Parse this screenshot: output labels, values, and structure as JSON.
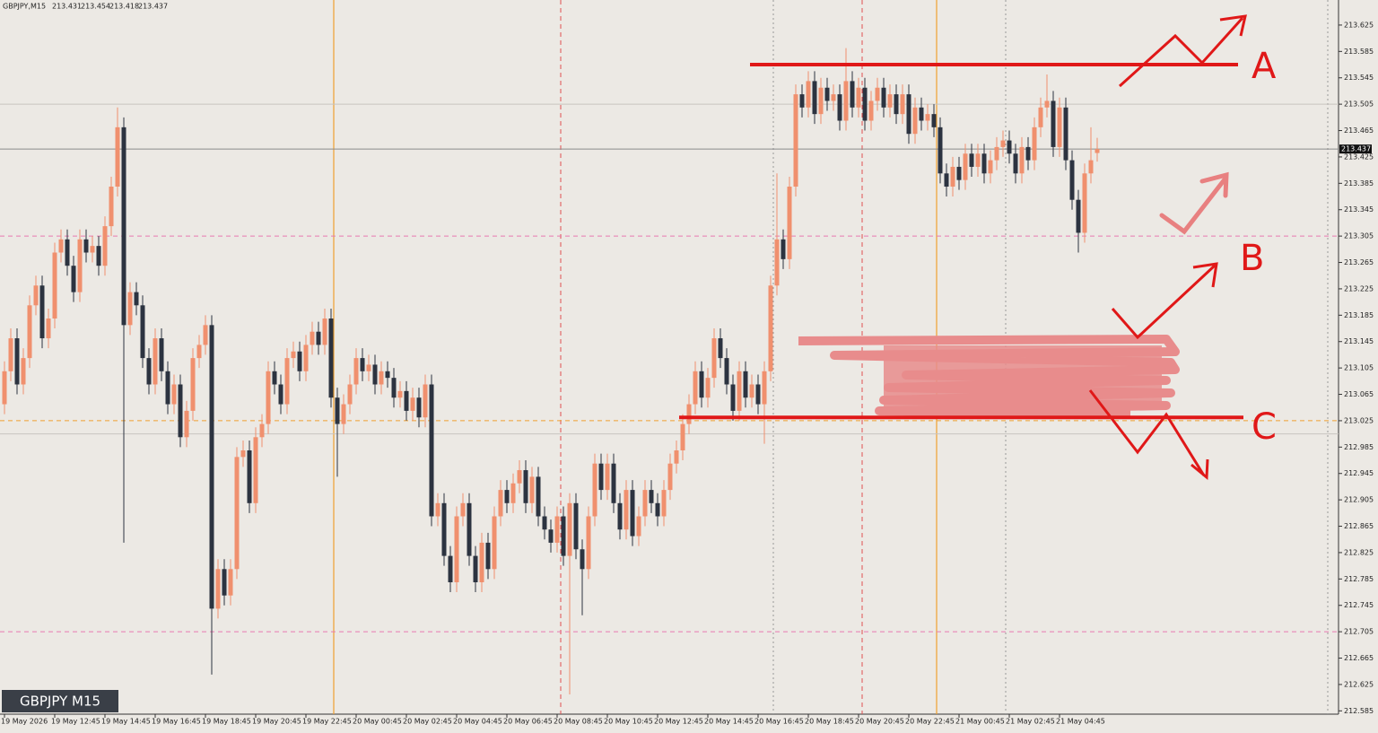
{
  "chart_data": {
    "type": "candlestick",
    "title": "GBPJPY,M15",
    "ohlc_header": [
      213.431,
      213.454,
      213.418,
      213.437
    ],
    "symbol_label": "GBPJPY M15",
    "current_price": 213.437,
    "up_color": "#f0906e",
    "down_color": "#2c3340",
    "ylim": [
      212.58,
      213.663
    ],
    "yticks": [
      213.625,
      213.585,
      213.545,
      213.505,
      213.465,
      213.425,
      213.385,
      213.345,
      213.305,
      213.265,
      213.225,
      213.185,
      213.145,
      213.105,
      213.065,
      213.025,
      212.985,
      212.945,
      212.905,
      212.865,
      212.825,
      212.785,
      212.745,
      212.705,
      212.665,
      212.625,
      212.585
    ],
    "categories": [
      "19 May 2026",
      null,
      null,
      null,
      null,
      null,
      null,
      null,
      "19 May 12:45",
      null,
      null,
      null,
      null,
      null,
      null,
      null,
      "19 May 14:45",
      null,
      null,
      null,
      null,
      null,
      null,
      null,
      "19 May 16:45",
      null,
      null,
      null,
      null,
      null,
      null,
      null,
      "19 May 18:45",
      null,
      null,
      null,
      null,
      null,
      null,
      null,
      "19 May 20:45",
      null,
      null,
      null,
      null,
      null,
      null,
      null,
      "19 May 22:45",
      null,
      null,
      null,
      null,
      null,
      null,
      null,
      "20 May 00:45",
      null,
      null,
      null,
      null,
      null,
      null,
      null,
      "20 May 02:45",
      null,
      null,
      null,
      null,
      null,
      null,
      null,
      "20 May 04:45",
      null,
      null,
      null,
      null,
      null,
      null,
      null,
      "20 May 06:45",
      null,
      null,
      null,
      null,
      null,
      null,
      null,
      "20 May 08:45",
      null,
      null,
      null,
      null,
      null,
      null,
      null,
      "20 May 10:45",
      null,
      null,
      null,
      null,
      null,
      null,
      null,
      "20 May 12:45",
      null,
      null,
      null,
      null,
      null,
      null,
      null,
      "20 May 14:45",
      null,
      null,
      null,
      null,
      null,
      null,
      null,
      "20 May 16:45",
      null,
      null,
      null,
      null,
      null,
      null,
      null,
      "20 May 18:45",
      null,
      null,
      null,
      null,
      null,
      null,
      null,
      "20 May 20:45",
      null,
      null,
      null,
      null,
      null,
      null,
      null,
      "20 May 22:45",
      null,
      null,
      null,
      null,
      null,
      null,
      null,
      "21 May 00:45",
      null,
      null,
      null,
      null,
      null,
      null,
      null,
      "21 May 02:45",
      null,
      null,
      null,
      null,
      null,
      null,
      null,
      "21 May 04:45",
      null,
      null,
      null,
      null,
      null,
      null
    ],
    "open": [
      213.05,
      213.1,
      213.15,
      213.08,
      213.12,
      213.2,
      213.23,
      213.15,
      213.18,
      213.28,
      213.3,
      213.26,
      213.22,
      213.3,
      213.28,
      213.29,
      213.26,
      213.32,
      213.38,
      213.47,
      213.17,
      213.22,
      213.2,
      213.12,
      213.08,
      213.15,
      213.1,
      213.05,
      213.08,
      213.0,
      213.04,
      213.12,
      213.14,
      213.17,
      212.74,
      212.8,
      212.76,
      212.8,
      212.97,
      212.98,
      212.9,
      213.0,
      213.02,
      213.1,
      213.08,
      213.05,
      213.12,
      213.13,
      213.1,
      213.14,
      213.16,
      213.14,
      213.18,
      213.06,
      213.02,
      213.05,
      213.08,
      213.12,
      213.1,
      213.11,
      213.08,
      213.1,
      213.09,
      213.06,
      213.07,
      213.04,
      213.06,
      213.03,
      213.08,
      212.88,
      212.9,
      212.82,
      212.78,
      212.88,
      212.9,
      212.82,
      212.78,
      212.84,
      212.8,
      212.88,
      212.92,
      212.9,
      212.93,
      212.95,
      212.9,
      212.94,
      212.88,
      212.86,
      212.84,
      212.88,
      212.82,
      212.9,
      212.83,
      212.8,
      212.88,
      212.96,
      212.92,
      212.96,
      212.9,
      212.86,
      212.92,
      212.85,
      212.88,
      212.92,
      212.9,
      212.88,
      212.92,
      212.96,
      212.98,
      213.02,
      213.05,
      213.1,
      213.06,
      213.09,
      213.15,
      213.12,
      213.08,
      213.04,
      213.1,
      213.06,
      213.08,
      213.05,
      213.1,
      213.23,
      213.3,
      213.27,
      213.38,
      213.52,
      213.5,
      213.54,
      213.49,
      213.53,
      213.51,
      213.52,
      213.48,
      213.54,
      213.5,
      213.53,
      213.48,
      213.51,
      213.53,
      213.5,
      213.52,
      213.49,
      213.52,
      213.46,
      213.5,
      213.48,
      213.49,
      213.47,
      213.4,
      213.38,
      213.41,
      213.39,
      213.43,
      213.41,
      213.43,
      213.4,
      213.42,
      213.44,
      213.45,
      213.43,
      213.4,
      213.44,
      213.42,
      213.47,
      213.5,
      213.51,
      213.44,
      213.5,
      213.42,
      213.36,
      213.31,
      213.4,
      213.431
    ],
    "high": [
      213.115,
      213.165,
      213.165,
      213.135,
      213.215,
      213.245,
      213.245,
      213.195,
      213.295,
      213.315,
      213.315,
      213.275,
      213.315,
      213.315,
      213.305,
      213.305,
      213.335,
      213.395,
      213.5,
      213.485,
      213.235,
      213.235,
      213.215,
      213.135,
      213.165,
      213.165,
      213.115,
      213.095,
      213.095,
      213.055,
      213.135,
      213.155,
      213.185,
      213.185,
      212.815,
      212.815,
      212.815,
      212.985,
      212.995,
      212.995,
      213.015,
      213.035,
      213.115,
      213.115,
      213.095,
      213.135,
      213.145,
      213.145,
      213.155,
      213.175,
      213.175,
      213.195,
      213.195,
      213.075,
      213.065,
      213.095,
      213.135,
      213.135,
      213.125,
      213.125,
      213.115,
      213.115,
      213.105,
      213.085,
      213.085,
      213.075,
      213.075,
      213.095,
      213.095,
      212.915,
      212.915,
      212.835,
      212.895,
      212.915,
      212.915,
      212.835,
      212.855,
      212.855,
      212.895,
      212.935,
      212.935,
      212.945,
      212.965,
      212.965,
      212.955,
      212.955,
      212.895,
      212.875,
      212.895,
      212.895,
      212.915,
      212.915,
      212.845,
      212.895,
      212.975,
      212.975,
      212.975,
      212.975,
      212.915,
      212.935,
      212.935,
      212.895,
      212.935,
      212.935,
      212.915,
      212.935,
      212.975,
      212.995,
      213.035,
      213.065,
      213.115,
      213.115,
      213.105,
      213.165,
      213.165,
      213.135,
      213.095,
      213.115,
      213.115,
      213.095,
      213.095,
      213.115,
      213.245,
      213.4,
      213.315,
      213.395,
      213.535,
      213.535,
      213.555,
      213.555,
      213.545,
      213.545,
      213.535,
      213.535,
      213.59,
      213.555,
      213.545,
      213.545,
      213.525,
      213.545,
      213.545,
      213.535,
      213.535,
      213.535,
      213.535,
      213.515,
      213.515,
      213.505,
      213.505,
      213.485,
      213.415,
      213.425,
      213.425,
      213.445,
      213.445,
      213.445,
      213.445,
      213.435,
      213.455,
      213.465,
      213.465,
      213.445,
      213.455,
      213.455,
      213.485,
      213.515,
      213.55,
      213.525,
      213.515,
      213.515,
      213.435,
      213.375,
      213.415,
      213.47,
      213.454
    ],
    "low": [
      213.035,
      213.085,
      213.065,
      213.065,
      213.105,
      213.185,
      213.135,
      213.135,
      213.165,
      213.265,
      213.245,
      213.205,
      213.205,
      213.265,
      213.265,
      213.245,
      213.245,
      213.305,
      213.365,
      212.84,
      213.155,
      213.185,
      213.105,
      213.065,
      213.065,
      213.085,
      213.035,
      213.035,
      212.985,
      212.985,
      213.025,
      213.105,
      213.125,
      212.64,
      212.725,
      212.745,
      212.745,
      212.785,
      212.955,
      212.885,
      212.885,
      212.985,
      213.005,
      213.065,
      213.035,
      213.035,
      213.105,
      213.085,
      213.085,
      213.125,
      213.125,
      213.125,
      213.045,
      212.94,
      213.005,
      213.035,
      213.065,
      213.085,
      213.085,
      213.065,
      213.065,
      213.075,
      213.045,
      213.045,
      213.025,
      213.025,
      213.015,
      213.015,
      212.865,
      212.865,
      212.805,
      212.765,
      212.765,
      212.865,
      212.805,
      212.765,
      212.765,
      212.785,
      212.785,
      212.865,
      212.885,
      212.885,
      212.915,
      212.885,
      212.885,
      212.865,
      212.845,
      212.825,
      212.825,
      212.805,
      212.61,
      212.815,
      212.73,
      212.785,
      212.865,
      212.905,
      212.905,
      212.885,
      212.845,
      212.845,
      212.835,
      212.835,
      212.865,
      212.885,
      212.865,
      212.865,
      212.905,
      212.945,
      212.965,
      213.005,
      213.035,
      213.045,
      213.045,
      213.075,
      213.105,
      213.065,
      213.025,
      213.025,
      213.045,
      213.045,
      213.035,
      212.99,
      213.085,
      213.215,
      213.255,
      213.255,
      213.365,
      213.485,
      213.485,
      213.475,
      213.475,
      213.495,
      213.495,
      213.465,
      213.465,
      213.485,
      213.485,
      213.465,
      213.465,
      213.495,
      213.485,
      213.485,
      213.475,
      213.475,
      213.445,
      213.445,
      213.465,
      213.465,
      213.455,
      213.385,
      213.365,
      213.365,
      213.375,
      213.375,
      213.395,
      213.395,
      213.385,
      213.385,
      213.405,
      213.425,
      213.415,
      213.385,
      213.385,
      213.405,
      213.405,
      213.455,
      213.485,
      213.425,
      213.425,
      213.405,
      213.345,
      213.28,
      213.295,
      213.385,
      213.418
    ],
    "close": [
      213.1,
      213.15,
      213.08,
      213.12,
      213.2,
      213.23,
      213.15,
      213.18,
      213.28,
      213.3,
      213.26,
      213.22,
      213.3,
      213.28,
      213.29,
      213.26,
      213.32,
      213.38,
      213.47,
      213.17,
      213.22,
      213.2,
      213.12,
      213.08,
      213.15,
      213.1,
      213.05,
      213.08,
      213.0,
      213.04,
      213.12,
      213.14,
      213.17,
      212.74,
      212.8,
      212.76,
      212.8,
      212.97,
      212.98,
      212.9,
      213.0,
      213.02,
      213.1,
      213.08,
      213.05,
      213.12,
      213.13,
      213.1,
      213.14,
      213.16,
      213.14,
      213.18,
      213.06,
      213.02,
      213.05,
      213.08,
      213.12,
      213.1,
      213.11,
      213.08,
      213.1,
      213.09,
      213.06,
      213.07,
      213.04,
      213.06,
      213.03,
      213.08,
      212.88,
      212.9,
      212.82,
      212.78,
      212.88,
      212.9,
      212.82,
      212.78,
      212.84,
      212.8,
      212.88,
      212.92,
      212.9,
      212.93,
      212.95,
      212.9,
      212.94,
      212.88,
      212.86,
      212.84,
      212.88,
      212.82,
      212.9,
      212.83,
      212.8,
      212.88,
      212.96,
      212.92,
      212.96,
      212.9,
      212.86,
      212.92,
      212.85,
      212.88,
      212.92,
      212.9,
      212.88,
      212.92,
      212.96,
      212.98,
      213.02,
      213.05,
      213.1,
      213.06,
      213.09,
      213.15,
      213.12,
      213.08,
      213.04,
      213.1,
      213.06,
      213.08,
      213.05,
      213.1,
      213.23,
      213.3,
      213.27,
      213.38,
      213.52,
      213.5,
      213.54,
      213.49,
      213.53,
      213.51,
      213.52,
      213.48,
      213.54,
      213.5,
      213.53,
      213.48,
      213.51,
      213.53,
      213.5,
      213.52,
      213.49,
      213.52,
      213.46,
      213.5,
      213.48,
      213.49,
      213.47,
      213.4,
      213.38,
      213.41,
      213.39,
      213.43,
      213.41,
      213.43,
      213.4,
      213.42,
      213.44,
      213.45,
      213.43,
      213.4,
      213.44,
      213.42,
      213.47,
      213.5,
      213.51,
      213.44,
      213.5,
      213.42,
      213.36,
      213.31,
      213.4,
      213.42,
      213.437
    ],
    "horizontal_lines": [
      {
        "value": 213.505,
        "color": "#c8c4bf",
        "style": "solid"
      },
      {
        "value": 213.305,
        "color": "#e87ab0",
        "style": "dashed"
      },
      {
        "value": 213.025,
        "color": "#f0a030",
        "style": "dashed"
      },
      {
        "value": 213.005,
        "color": "#c8c4bf",
        "style": "solid"
      },
      {
        "value": 212.705,
        "color": "#e87ab0",
        "style": "dashed"
      }
    ],
    "level_lines": [
      213.565,
      213.03
    ],
    "level_color": "#e01818",
    "annotations": [
      "A",
      "B",
      "C"
    ]
  }
}
